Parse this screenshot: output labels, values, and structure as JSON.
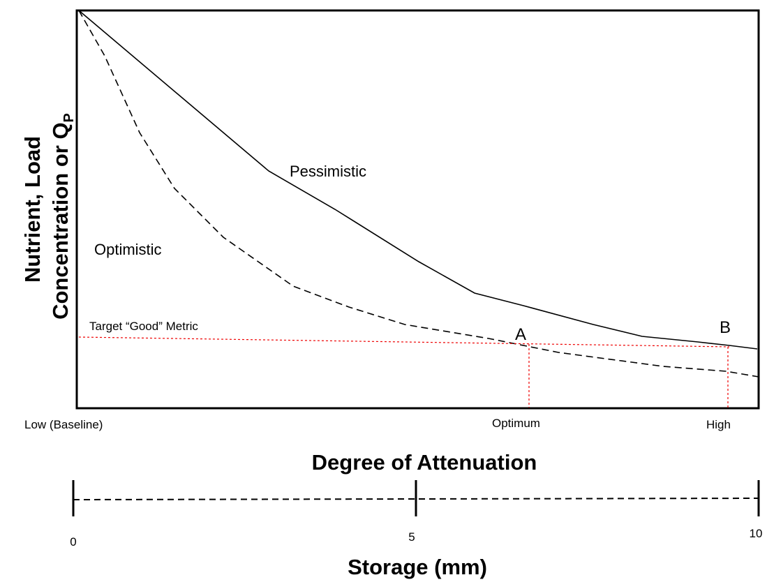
{
  "y_axis_label": {
    "line1": "Nutrient, Load",
    "line2": "Concentration or Q",
    "subscript": "P"
  },
  "curves": {
    "pessimistic": "Pessimistic",
    "optimistic": "Optimistic"
  },
  "target_label": "Target “Good” Metric",
  "points": {
    "a": "A",
    "b": "B"
  },
  "x_labels": {
    "low": "Low (Baseline)",
    "optimum": "Optimum",
    "high": "High"
  },
  "x_axis_title": "Degree of Attenuation",
  "storage_scale": {
    "ticks": [
      "0",
      "5",
      "10"
    ],
    "title": "Storage (mm)"
  }
}
